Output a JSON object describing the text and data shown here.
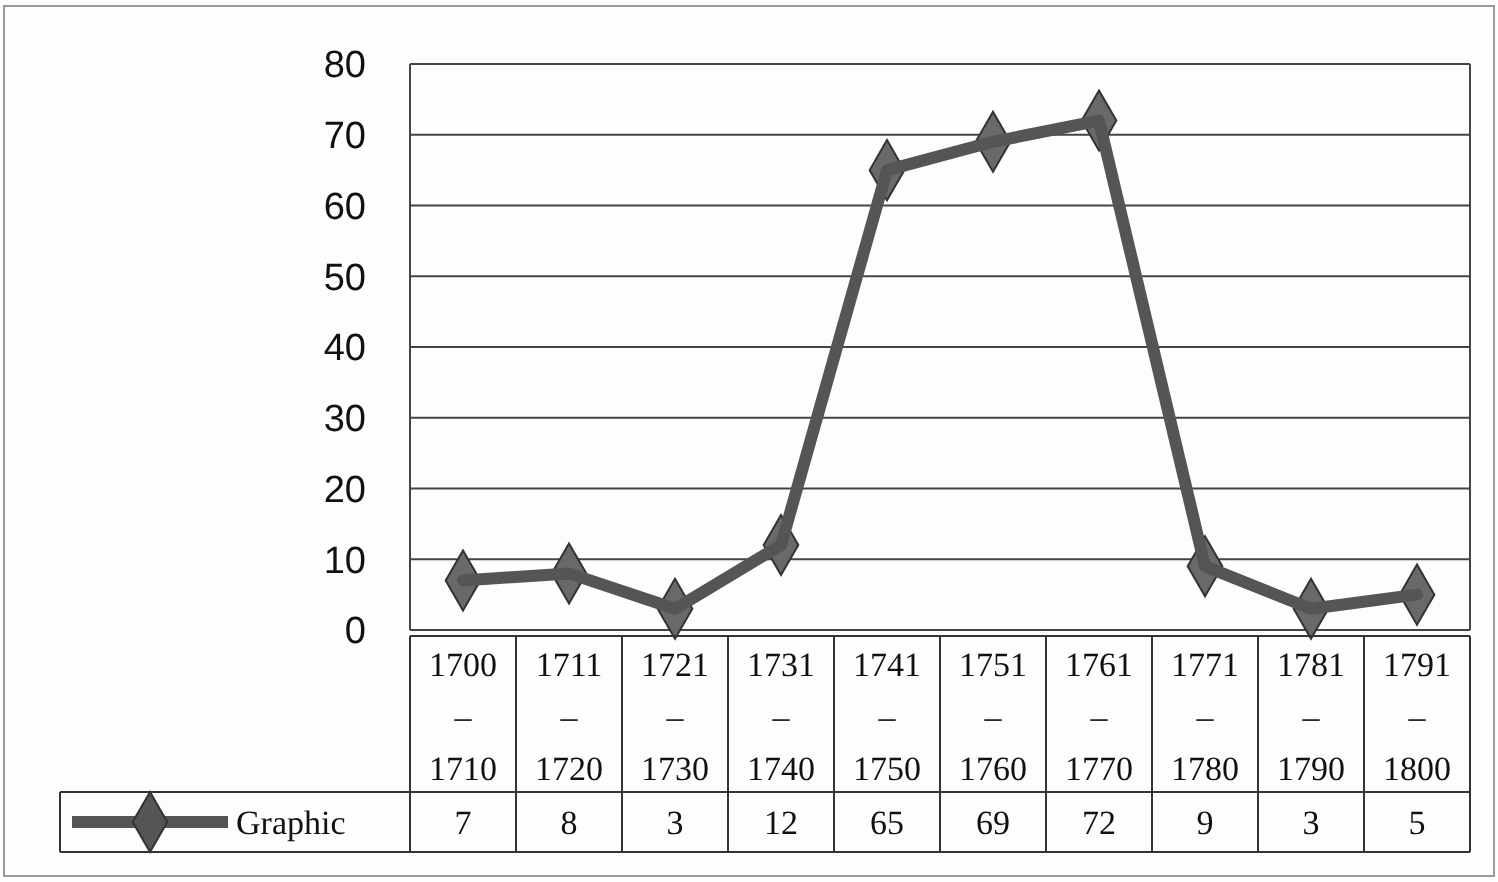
{
  "chart_data": {
    "type": "line",
    "categories": [
      "1700–1710",
      "1711–1720",
      "1721–1730",
      "1731–1740",
      "1741–1750",
      "1751–1760",
      "1761–1770",
      "1771–1780",
      "1781–1790",
      "1791–1800"
    ],
    "series": [
      {
        "name": "Graphic",
        "color": "#555555",
        "values": [
          7,
          8,
          3,
          12,
          65,
          69,
          72,
          9,
          3,
          5
        ]
      }
    ],
    "ylim": [
      0,
      80
    ],
    "yticks": [
      0,
      10,
      20,
      30,
      40,
      50,
      60,
      70,
      80
    ],
    "grid": "y",
    "legend": "bottom left",
    "data_labels": true,
    "marker": "diamond",
    "line_style": "solid"
  }
}
